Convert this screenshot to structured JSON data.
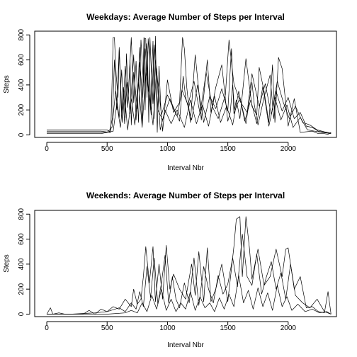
{
  "chart_data": [
    {
      "type": "line",
      "title": "Weekdays: Average Number of Steps per Interval",
      "xlabel": "Interval Nbr",
      "ylabel": "Steps",
      "xlim": [
        -100,
        2400
      ],
      "ylim": [
        -20,
        830
      ],
      "xticks": [
        0,
        500,
        1000,
        1500,
        2000
      ],
      "yticks": [
        0,
        200,
        400,
        600,
        800
      ],
      "grid": false,
      "legend": "none",
      "line_color": "#000000",
      "series": [
        {
          "x": [
            0,
            50,
            100,
            200,
            300,
            400,
            450,
            500,
            530,
            550,
            560,
            575,
            590,
            600,
            610,
            620,
            635,
            650,
            660,
            675,
            700,
            720,
            740,
            760,
            780,
            800,
            810,
            820,
            830,
            840,
            850,
            860,
            870,
            880,
            890,
            900,
            915,
            930,
            945,
            960,
            1000,
            1050,
            1100,
            1125,
            1140,
            1160,
            1190,
            1230,
            1260,
            1280,
            1300,
            1330,
            1360,
            1400,
            1450,
            1500,
            1520,
            1540,
            1555,
            1570,
            1600,
            1650,
            1700,
            1740,
            1760,
            1800,
            1840,
            1870,
            1890,
            1920,
            1950,
            2000,
            2050,
            2100,
            2200,
            2250,
            2300,
            2330,
            2355
          ],
          "y": [
            40,
            40,
            40,
            40,
            40,
            40,
            40,
            40,
            20,
            780,
            780,
            480,
            300,
            680,
            420,
            150,
            380,
            140,
            650,
            300,
            780,
            260,
            590,
            100,
            760,
            420,
            770,
            770,
            300,
            770,
            640,
            200,
            500,
            750,
            130,
            790,
            20,
            550,
            210,
            30,
            440,
            180,
            260,
            780,
            690,
            380,
            100,
            640,
            350,
            120,
            310,
            600,
            180,
            380,
            560,
            110,
            180,
            400,
            200,
            280,
            130,
            610,
            230,
            160,
            540,
            350,
            100,
            560,
            100,
            620,
            530,
            70,
            290,
            20,
            30,
            10,
            10,
            5,
            20
          ]
        },
        {
          "x": [
            0,
            100,
            300,
            450,
            520,
            545,
            560,
            580,
            600,
            625,
            650,
            670,
            690,
            700,
            720,
            750,
            770,
            790,
            805,
            815,
            825,
            835,
            845,
            855,
            865,
            880,
            900,
            950,
            1000,
            1050,
            1100,
            1130,
            1150,
            1200,
            1250,
            1300,
            1350,
            1400,
            1450,
            1500,
            1530,
            1550,
            1600,
            1650,
            1700,
            1720,
            1750,
            1800,
            1850,
            1880,
            1900,
            1950,
            2000,
            2050,
            2100,
            2150,
            2200,
            2250,
            2300,
            2355
          ],
          "y": [
            30,
            30,
            30,
            30,
            20,
            140,
            600,
            200,
            700,
            100,
            550,
            220,
            600,
            80,
            500,
            210,
            700,
            90,
            780,
            200,
            730,
            650,
            100,
            780,
            540,
            250,
            600,
            160,
            320,
            210,
            110,
            470,
            300,
            120,
            400,
            100,
            310,
            210,
            370,
            190,
            690,
            170,
            300,
            90,
            420,
            240,
            80,
            300,
            480,
            130,
            350,
            190,
            300,
            130,
            180,
            70,
            60,
            30,
            20,
            10
          ]
        },
        {
          "x": [
            0,
            200,
            400,
            500,
            540,
            570,
            600,
            620,
            645,
            665,
            690,
            720,
            740,
            770,
            795,
            815,
            840,
            865,
            890,
            920,
            960,
            1020,
            1080,
            1120,
            1170,
            1220,
            1270,
            1320,
            1370,
            1420,
            1480,
            1510,
            1550,
            1600,
            1660,
            1700,
            1760,
            1810,
            1860,
            1910,
            1960,
            2010,
            2060,
            2120,
            2180,
            2240,
            2300,
            2355
          ],
          "y": [
            20,
            20,
            20,
            20,
            60,
            350,
            140,
            520,
            90,
            420,
            170,
            640,
            120,
            580,
            300,
            690,
            410,
            160,
            720,
            200,
            120,
            290,
            150,
            360,
            240,
            430,
            170,
            500,
            230,
            130,
            320,
            760,
            410,
            270,
            180,
            490,
            230,
            410,
            160,
            430,
            260,
            130,
            230,
            100,
            80,
            40,
            25,
            15
          ]
        },
        {
          "x": [
            0,
            100,
            300,
            450,
            550,
            580,
            610,
            640,
            670,
            700,
            730,
            760,
            790,
            820,
            850,
            880,
            910,
            940,
            980,
            1030,
            1080,
            1140,
            1190,
            1240,
            1290,
            1340,
            1390,
            1440,
            1490,
            1540,
            1590,
            1640,
            1690,
            1740,
            1790,
            1840,
            1890,
            1940,
            1990,
            2040,
            2100,
            2160,
            2220,
            2280,
            2355
          ],
          "y": [
            10,
            10,
            10,
            10,
            30,
            250,
            60,
            370,
            40,
            290,
            80,
            420,
            60,
            500,
            320,
            80,
            530,
            40,
            200,
            90,
            200,
            60,
            280,
            90,
            240,
            70,
            310,
            100,
            230,
            80,
            350,
            110,
            280,
            90,
            390,
            70,
            300,
            120,
            240,
            60,
            140,
            40,
            30,
            20,
            10
          ]
        }
      ]
    },
    {
      "type": "line",
      "title": "Weekends: Average Number of Steps per Interval",
      "xlabel": "Interval Nbr",
      "ylabel": "Steps",
      "xlim": [
        -100,
        2400
      ],
      "ylim": [
        -20,
        830
      ],
      "xticks": [
        0,
        500,
        1000,
        1500,
        2000
      ],
      "yticks": [
        0,
        200,
        400,
        600,
        800
      ],
      "grid": false,
      "legend": "none",
      "line_color": "#000000",
      "series": [
        {
          "x": [
            0,
            30,
            50,
            100,
            150,
            300,
            350,
            400,
            450,
            500,
            550,
            600,
            650,
            700,
            720,
            750,
            780,
            800,
            820,
            850,
            880,
            900,
            930,
            960,
            990,
            1020,
            1050,
            1100,
            1150,
            1200,
            1230,
            1260,
            1300,
            1330,
            1360,
            1400,
            1450,
            1500,
            1550,
            1570,
            1600,
            1620,
            1650,
            1680,
            1700,
            1750,
            1800,
            1850,
            1900,
            1950,
            1980,
            2000,
            2050,
            2100,
            2150,
            2200,
            2250,
            2300,
            2330,
            2355
          ],
          "y": [
            0,
            50,
            0,
            10,
            0,
            0,
            30,
            0,
            40,
            20,
            60,
            40,
            120,
            60,
            200,
            80,
            120,
            300,
            540,
            250,
            540,
            100,
            400,
            120,
            550,
            200,
            320,
            200,
            120,
            400,
            150,
            500,
            100,
            530,
            100,
            200,
            400,
            100,
            540,
            760,
            780,
            300,
            780,
            520,
            280,
            520,
            230,
            300,
            520,
            300,
            520,
            530,
            200,
            300,
            50,
            60,
            20,
            10,
            180,
            0
          ]
        },
        {
          "x": [
            0,
            200,
            400,
            500,
            600,
            650,
            700,
            740,
            770,
            800,
            830,
            860,
            890,
            920,
            950,
            980,
            1010,
            1040,
            1070,
            1100,
            1140,
            1180,
            1220,
            1260,
            1300,
            1340,
            1380,
            1420,
            1460,
            1500,
            1540,
            1580,
            1620,
            1660,
            1700,
            1740,
            1780,
            1820,
            1860,
            1900,
            1940,
            1980,
            2020,
            2060,
            2120,
            2180,
            2240,
            2300,
            2355
          ],
          "y": [
            0,
            0,
            10,
            20,
            50,
            20,
            90,
            40,
            180,
            60,
            380,
            130,
            450,
            80,
            250,
            470,
            90,
            300,
            120,
            50,
            250,
            90,
            450,
            70,
            380,
            200,
            90,
            310,
            160,
            240,
            450,
            220,
            640,
            300,
            230,
            480,
            160,
            300,
            420,
            200,
            330,
            120,
            400,
            150,
            90,
            50,
            120,
            20,
            0
          ]
        },
        {
          "x": [
            0,
            300,
            500,
            650,
            700,
            750,
            790,
            830,
            870,
            910,
            950,
            990,
            1030,
            1070,
            1110,
            1150,
            1190,
            1230,
            1270,
            1310,
            1350,
            1390,
            1430,
            1470,
            1510,
            1550,
            1590,
            1630,
            1670,
            1710,
            1750,
            1790,
            1830,
            1870,
            1910,
            1950,
            1990,
            2030,
            2080,
            2140,
            2200,
            2260,
            2320,
            2355
          ],
          "y": [
            0,
            0,
            0,
            10,
            30,
            10,
            90,
            20,
            150,
            40,
            200,
            30,
            120,
            20,
            90,
            40,
            180,
            30,
            140,
            50,
            90,
            20,
            130,
            40,
            160,
            60,
            310,
            90,
            190,
            40,
            210,
            60,
            170,
            30,
            230,
            60,
            140,
            30,
            80,
            20,
            40,
            10,
            20,
            0
          ]
        }
      ]
    }
  ]
}
